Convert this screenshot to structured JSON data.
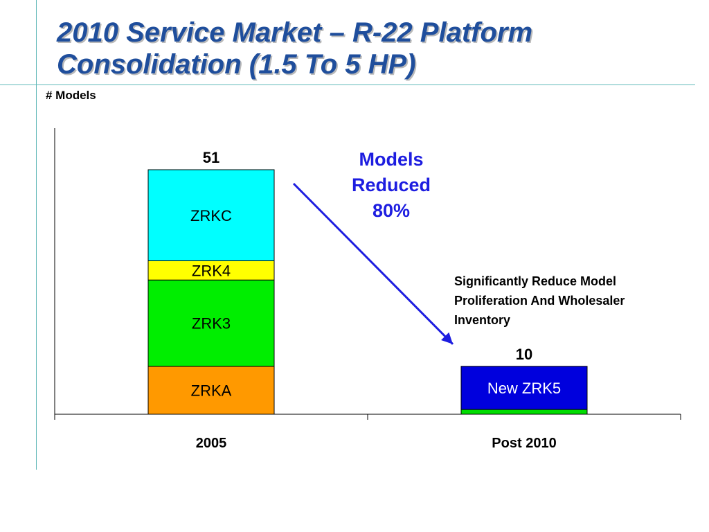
{
  "title": "2010 Service Market – R-22 Platform Consolidation (1.5 To 5 HP)",
  "annotations": {
    "models_reduced": [
      "Models",
      "Reduced",
      "80%"
    ],
    "proliferation": [
      "Significantly Reduce Model",
      "Proliferation And Wholesaler",
      "Inventory"
    ]
  },
  "chart_data": {
    "type": "bar",
    "stacked": true,
    "ylabel": "# Models",
    "categories": [
      "2005",
      "Post 2010"
    ],
    "totals": [
      51,
      10
    ],
    "ylim": [
      0,
      60
    ],
    "series": [
      {
        "name": "ZRKA",
        "values": [
          10,
          0
        ],
        "color": "#ff9900"
      },
      {
        "name": "ZRK3",
        "values": [
          18,
          0
        ],
        "color": "#00ee00"
      },
      {
        "name": "ZRK4",
        "values": [
          4,
          0
        ],
        "color": "#ffff00"
      },
      {
        "name": "ZRKC",
        "values": [
          19,
          0
        ],
        "color": "#00ffff"
      },
      {
        "name": "",
        "values": [
          0,
          1
        ],
        "color": "#00dd00"
      },
      {
        "name": "New ZRK5",
        "values": [
          0,
          9
        ],
        "color": "#0000dd"
      }
    ],
    "label_colors": {
      "ZRKA": "#000000",
      "ZRK3": "#000000",
      "ZRK4": "#000000",
      "ZRKC": "#000000",
      "New ZRK5": "#ffffff"
    },
    "grid": false
  }
}
